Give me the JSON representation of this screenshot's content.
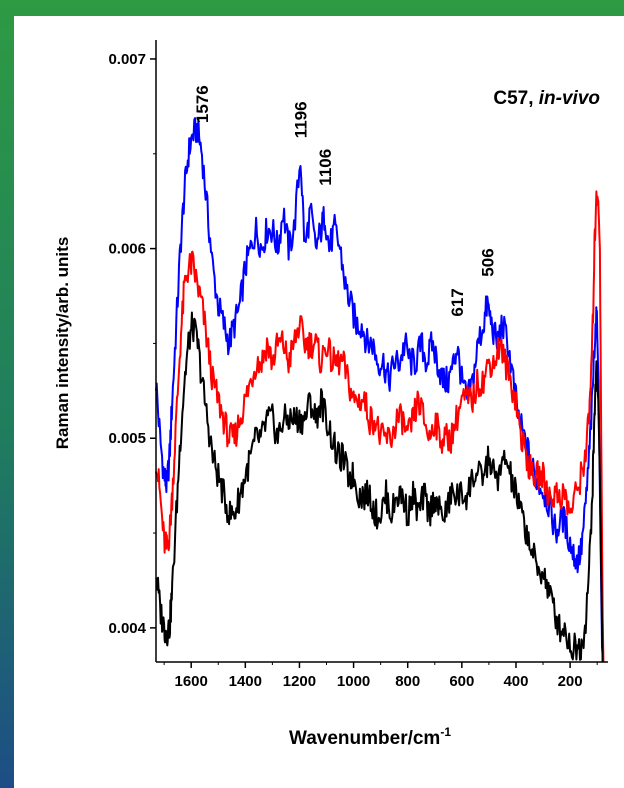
{
  "chart_data": {
    "type": "line",
    "title": "",
    "annotation": {
      "prefix": "C57, ",
      "italic": "in-vivo"
    },
    "xlabel": {
      "base": "Wavenumber/cm",
      "sup": "-1"
    },
    "ylabel": "Raman intensity/arb. units",
    "x_reversed": true,
    "xlim": [
      1730,
      60
    ],
    "ylim": [
      0.00382,
      0.0071
    ],
    "x_ticks": [
      1600,
      1400,
      1200,
      1000,
      800,
      600,
      400,
      200
    ],
    "x_tick_labels": [
      "1600",
      "1400",
      "1200",
      "1000",
      "800",
      "600",
      "400",
      "200"
    ],
    "y_ticks": [
      0.004,
      0.005,
      0.006,
      0.007
    ],
    "y_tick_labels": [
      "0.004",
      "0.005",
      "0.006",
      "0.007"
    ],
    "peak_labels": [
      {
        "text": "1576",
        "x": 1560,
        "y": 0.00663
      },
      {
        "text": "1196",
        "x": 1196,
        "y": 0.00655
      },
      {
        "text": "1106",
        "x": 1106,
        "y": 0.0063
      },
      {
        "text": "617",
        "x": 617,
        "y": 0.00561
      },
      {
        "text": "506",
        "x": 506,
        "y": 0.00582
      }
    ],
    "series": [
      {
        "color": "#0000ff",
        "points": [
          [
            1730,
            0.0053
          ],
          [
            1715,
            0.005
          ],
          [
            1700,
            0.0048
          ],
          [
            1690,
            0.00475
          ],
          [
            1680,
            0.0049
          ],
          [
            1670,
            0.0052
          ],
          [
            1655,
            0.0056
          ],
          [
            1640,
            0.006
          ],
          [
            1625,
            0.0063
          ],
          [
            1610,
            0.0065
          ],
          [
            1595,
            0.0066
          ],
          [
            1576,
            0.00663
          ],
          [
            1560,
            0.0065
          ],
          [
            1540,
            0.0062
          ],
          [
            1520,
            0.0059
          ],
          [
            1500,
            0.0057
          ],
          [
            1480,
            0.0056
          ],
          [
            1460,
            0.0055
          ],
          [
            1440,
            0.0056
          ],
          [
            1420,
            0.0057
          ],
          [
            1400,
            0.0059
          ],
          [
            1380,
            0.006
          ],
          [
            1360,
            0.0061
          ],
          [
            1340,
            0.006
          ],
          [
            1320,
            0.0061
          ],
          [
            1300,
            0.0061
          ],
          [
            1280,
            0.006
          ],
          [
            1260,
            0.0062
          ],
          [
            1240,
            0.006
          ],
          [
            1220,
            0.0061
          ],
          [
            1196,
            0.00648
          ],
          [
            1180,
            0.006
          ],
          [
            1160,
            0.0062
          ],
          [
            1140,
            0.006
          ],
          [
            1120,
            0.0061
          ],
          [
            1106,
            0.00618
          ],
          [
            1090,
            0.006
          ],
          [
            1070,
            0.0061
          ],
          [
            1050,
            0.006
          ],
          [
            1030,
            0.0058
          ],
          [
            1010,
            0.0057
          ],
          [
            990,
            0.0056
          ],
          [
            970,
            0.0056
          ],
          [
            950,
            0.0055
          ],
          [
            930,
            0.0055
          ],
          [
            910,
            0.0054
          ],
          [
            890,
            0.0054
          ],
          [
            870,
            0.0053
          ],
          [
            850,
            0.0054
          ],
          [
            830,
            0.0054
          ],
          [
            810,
            0.0055
          ],
          [
            790,
            0.0054
          ],
          [
            770,
            0.0054
          ],
          [
            750,
            0.0055
          ],
          [
            730,
            0.0054
          ],
          [
            710,
            0.0055
          ],
          [
            690,
            0.0054
          ],
          [
            670,
            0.0053
          ],
          [
            650,
            0.0053
          ],
          [
            630,
            0.0054
          ],
          [
            617,
            0.00548
          ],
          [
            600,
            0.0053
          ],
          [
            580,
            0.0052
          ],
          [
            560,
            0.0053
          ],
          [
            540,
            0.0055
          ],
          [
            520,
            0.0056
          ],
          [
            506,
            0.00571
          ],
          [
            490,
            0.0056
          ],
          [
            470,
            0.0055
          ],
          [
            450,
            0.0056
          ],
          [
            430,
            0.0055
          ],
          [
            410,
            0.0053
          ],
          [
            390,
            0.0051
          ],
          [
            370,
            0.005
          ],
          [
            350,
            0.0049
          ],
          [
            330,
            0.0048
          ],
          [
            310,
            0.00475
          ],
          [
            290,
            0.0047
          ],
          [
            270,
            0.0046
          ],
          [
            250,
            0.0045
          ],
          [
            230,
            0.0046
          ],
          [
            210,
            0.0045
          ],
          [
            190,
            0.0044
          ],
          [
            175,
            0.00435
          ],
          [
            160,
            0.0044
          ],
          [
            145,
            0.0046
          ],
          [
            130,
            0.0049
          ],
          [
            118,
            0.0052
          ],
          [
            110,
            0.0055
          ],
          [
            102,
            0.00565
          ],
          [
            95,
            0.0053
          ],
          [
            88,
            0.0045
          ],
          [
            82,
            0.0039
          ],
          [
            78,
            0.00382
          ]
        ]
      },
      {
        "color": "#ff0000",
        "points": [
          [
            1730,
            0.0049
          ],
          [
            1715,
            0.0047
          ],
          [
            1700,
            0.00445
          ],
          [
            1690,
            0.00442
          ],
          [
            1680,
            0.0045
          ],
          [
            1670,
            0.0047
          ],
          [
            1655,
            0.0051
          ],
          [
            1640,
            0.0055
          ],
          [
            1625,
            0.0058
          ],
          [
            1610,
            0.0059
          ],
          [
            1595,
            0.00592
          ],
          [
            1576,
            0.0058
          ],
          [
            1560,
            0.0057
          ],
          [
            1540,
            0.0055
          ],
          [
            1520,
            0.0053
          ],
          [
            1500,
            0.0052
          ],
          [
            1480,
            0.0051
          ],
          [
            1460,
            0.005
          ],
          [
            1440,
            0.005
          ],
          [
            1420,
            0.0051
          ],
          [
            1400,
            0.0052
          ],
          [
            1380,
            0.0053
          ],
          [
            1360,
            0.0054
          ],
          [
            1340,
            0.0054
          ],
          [
            1320,
            0.0055
          ],
          [
            1300,
            0.0054
          ],
          [
            1280,
            0.0055
          ],
          [
            1260,
            0.0055
          ],
          [
            1240,
            0.0054
          ],
          [
            1220,
            0.0055
          ],
          [
            1200,
            0.0056
          ],
          [
            1180,
            0.0055
          ],
          [
            1160,
            0.0055
          ],
          [
            1140,
            0.0055
          ],
          [
            1120,
            0.0054
          ],
          [
            1100,
            0.0055
          ],
          [
            1080,
            0.0054
          ],
          [
            1060,
            0.0054
          ],
          [
            1040,
            0.0054
          ],
          [
            1020,
            0.0053
          ],
          [
            1000,
            0.0052
          ],
          [
            980,
            0.0052
          ],
          [
            960,
            0.0052
          ],
          [
            940,
            0.0051
          ],
          [
            920,
            0.0051
          ],
          [
            900,
            0.005
          ],
          [
            880,
            0.005
          ],
          [
            860,
            0.005
          ],
          [
            840,
            0.0051
          ],
          [
            820,
            0.0051
          ],
          [
            800,
            0.005
          ],
          [
            780,
            0.0051
          ],
          [
            760,
            0.0052
          ],
          [
            740,
            0.0051
          ],
          [
            720,
            0.005
          ],
          [
            700,
            0.0051
          ],
          [
            680,
            0.005
          ],
          [
            660,
            0.005
          ],
          [
            640,
            0.005
          ],
          [
            620,
            0.0051
          ],
          [
            600,
            0.0052
          ],
          [
            580,
            0.0052
          ],
          [
            560,
            0.0052
          ],
          [
            540,
            0.0053
          ],
          [
            520,
            0.0053
          ],
          [
            500,
            0.0054
          ],
          [
            480,
            0.0054
          ],
          [
            460,
            0.0055
          ],
          [
            440,
            0.0054
          ],
          [
            420,
            0.0053
          ],
          [
            400,
            0.0052
          ],
          [
            380,
            0.005
          ],
          [
            360,
            0.0049
          ],
          [
            340,
            0.0048
          ],
          [
            320,
            0.0048
          ],
          [
            300,
            0.0048
          ],
          [
            280,
            0.0047
          ],
          [
            260,
            0.0047
          ],
          [
            240,
            0.0047
          ],
          [
            220,
            0.0047
          ],
          [
            200,
            0.0046
          ],
          [
            180,
            0.0047
          ],
          [
            160,
            0.0048
          ],
          [
            145,
            0.0049
          ],
          [
            130,
            0.0051
          ],
          [
            118,
            0.0055
          ],
          [
            110,
            0.006
          ],
          [
            103,
            0.0063
          ],
          [
            96,
            0.00625
          ],
          [
            90,
            0.006
          ],
          [
            85,
            0.005
          ],
          [
            80,
            0.0041
          ],
          [
            77,
            0.00382
          ]
        ]
      },
      {
        "color": "#000000",
        "points": [
          [
            1730,
            0.0043
          ],
          [
            1715,
            0.0041
          ],
          [
            1700,
            0.004
          ],
          [
            1690,
            0.00398
          ],
          [
            1680,
            0.004
          ],
          [
            1670,
            0.0042
          ],
          [
            1655,
            0.0046
          ],
          [
            1640,
            0.005
          ],
          [
            1625,
            0.0053
          ],
          [
            1610,
            0.0055
          ],
          [
            1595,
            0.0056
          ],
          [
            1576,
            0.0055
          ],
          [
            1560,
            0.0053
          ],
          [
            1540,
            0.0051
          ],
          [
            1520,
            0.0049
          ],
          [
            1500,
            0.0048
          ],
          [
            1480,
            0.0047
          ],
          [
            1460,
            0.0046
          ],
          [
            1440,
            0.0046
          ],
          [
            1420,
            0.0047
          ],
          [
            1400,
            0.0048
          ],
          [
            1380,
            0.0049
          ],
          [
            1360,
            0.005
          ],
          [
            1340,
            0.005
          ],
          [
            1320,
            0.0051
          ],
          [
            1300,
            0.0051
          ],
          [
            1280,
            0.005
          ],
          [
            1260,
            0.0051
          ],
          [
            1240,
            0.0051
          ],
          [
            1220,
            0.0051
          ],
          [
            1200,
            0.0051
          ],
          [
            1180,
            0.0051
          ],
          [
            1160,
            0.0052
          ],
          [
            1140,
            0.0051
          ],
          [
            1120,
            0.0052
          ],
          [
            1100,
            0.0051
          ],
          [
            1080,
            0.005
          ],
          [
            1060,
            0.0049
          ],
          [
            1040,
            0.0049
          ],
          [
            1020,
            0.0048
          ],
          [
            1000,
            0.0048
          ],
          [
            980,
            0.0047
          ],
          [
            960,
            0.0047
          ],
          [
            940,
            0.0047
          ],
          [
            920,
            0.0046
          ],
          [
            900,
            0.0046
          ],
          [
            880,
            0.0047
          ],
          [
            860,
            0.0046
          ],
          [
            840,
            0.0047
          ],
          [
            820,
            0.0047
          ],
          [
            800,
            0.0046
          ],
          [
            780,
            0.0047
          ],
          [
            760,
            0.0046
          ],
          [
            740,
            0.0047
          ],
          [
            720,
            0.0046
          ],
          [
            700,
            0.0047
          ],
          [
            680,
            0.0046
          ],
          [
            660,
            0.0046
          ],
          [
            640,
            0.0047
          ],
          [
            620,
            0.0047
          ],
          [
            600,
            0.0047
          ],
          [
            580,
            0.0047
          ],
          [
            560,
            0.0048
          ],
          [
            540,
            0.0048
          ],
          [
            520,
            0.0048
          ],
          [
            500,
            0.0049
          ],
          [
            480,
            0.0048
          ],
          [
            460,
            0.0048
          ],
          [
            440,
            0.0049
          ],
          [
            420,
            0.0048
          ],
          [
            400,
            0.0047
          ],
          [
            380,
            0.0046
          ],
          [
            360,
            0.0045
          ],
          [
            340,
            0.0044
          ],
          [
            320,
            0.0043
          ],
          [
            300,
            0.0043
          ],
          [
            280,
            0.0042
          ],
          [
            260,
            0.0041
          ],
          [
            240,
            0.004
          ],
          [
            220,
            0.004
          ],
          [
            200,
            0.0039
          ],
          [
            180,
            0.0039
          ],
          [
            160,
            0.0039
          ],
          [
            145,
            0.004
          ],
          [
            130,
            0.0043
          ],
          [
            118,
            0.0047
          ],
          [
            110,
            0.0051
          ],
          [
            103,
            0.0054
          ],
          [
            96,
            0.0052
          ],
          [
            90,
            0.0048
          ],
          [
            85,
            0.0043
          ],
          [
            80,
            0.00382
          ]
        ]
      }
    ]
  }
}
